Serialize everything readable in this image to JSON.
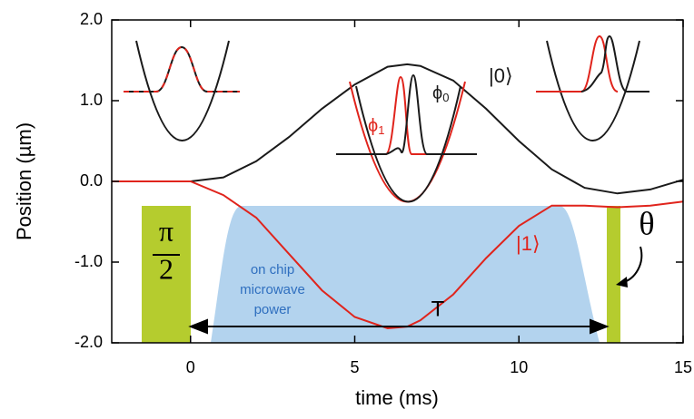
{
  "chart_data": {
    "type": "line",
    "xlabel": "time (ms)",
    "ylabel": "Position (µm)",
    "x": [
      -2.4,
      -1,
      0,
      1,
      2,
      3,
      4,
      5,
      6,
      6.6,
      7,
      8,
      9,
      10,
      11,
      12,
      13,
      14,
      15
    ],
    "series": [
      {
        "name": "|0⟩",
        "color": "#1a1a1a",
        "values": [
          0,
          0,
          0,
          0.05,
          0.25,
          0.55,
          0.9,
          1.2,
          1.42,
          1.45,
          1.43,
          1.25,
          0.9,
          0.5,
          0.15,
          -0.08,
          -0.15,
          -0.1,
          0.02
        ]
      },
      {
        "name": "|1⟩",
        "color": "#e0241c",
        "values": [
          0,
          0,
          0,
          -0.17,
          -0.45,
          -0.9,
          -1.35,
          -1.68,
          -1.82,
          -1.8,
          -1.72,
          -1.4,
          -0.95,
          -0.55,
          -0.3,
          -0.3,
          -0.32,
          -0.3,
          -0.25
        ]
      }
    ],
    "xlim": [
      -2.4,
      15
    ],
    "ylim": [
      -2,
      2
    ],
    "xticks": [
      0,
      5,
      10,
      15
    ],
    "yticks": [
      {
        "value": 2,
        "label": "2.0"
      },
      {
        "value": 1,
        "label": "1.0"
      },
      {
        "value": 0,
        "label": "0.0"
      },
      {
        "value": -1,
        "label": "-1.0"
      },
      {
        "value": -2,
        "label": "-2.0"
      }
    ],
    "annotations": {
      "phi1": {
        "symbol": "ϕ",
        "subscript": "1"
      },
      "phi0": {
        "symbol": "ϕ",
        "subscript": "0"
      },
      "pi_over_2": {
        "numerator": "π",
        "denominator": "2"
      },
      "theta": "θ",
      "microwave": [
        "on chip",
        "microwave",
        "power"
      ],
      "period": "T"
    }
  }
}
